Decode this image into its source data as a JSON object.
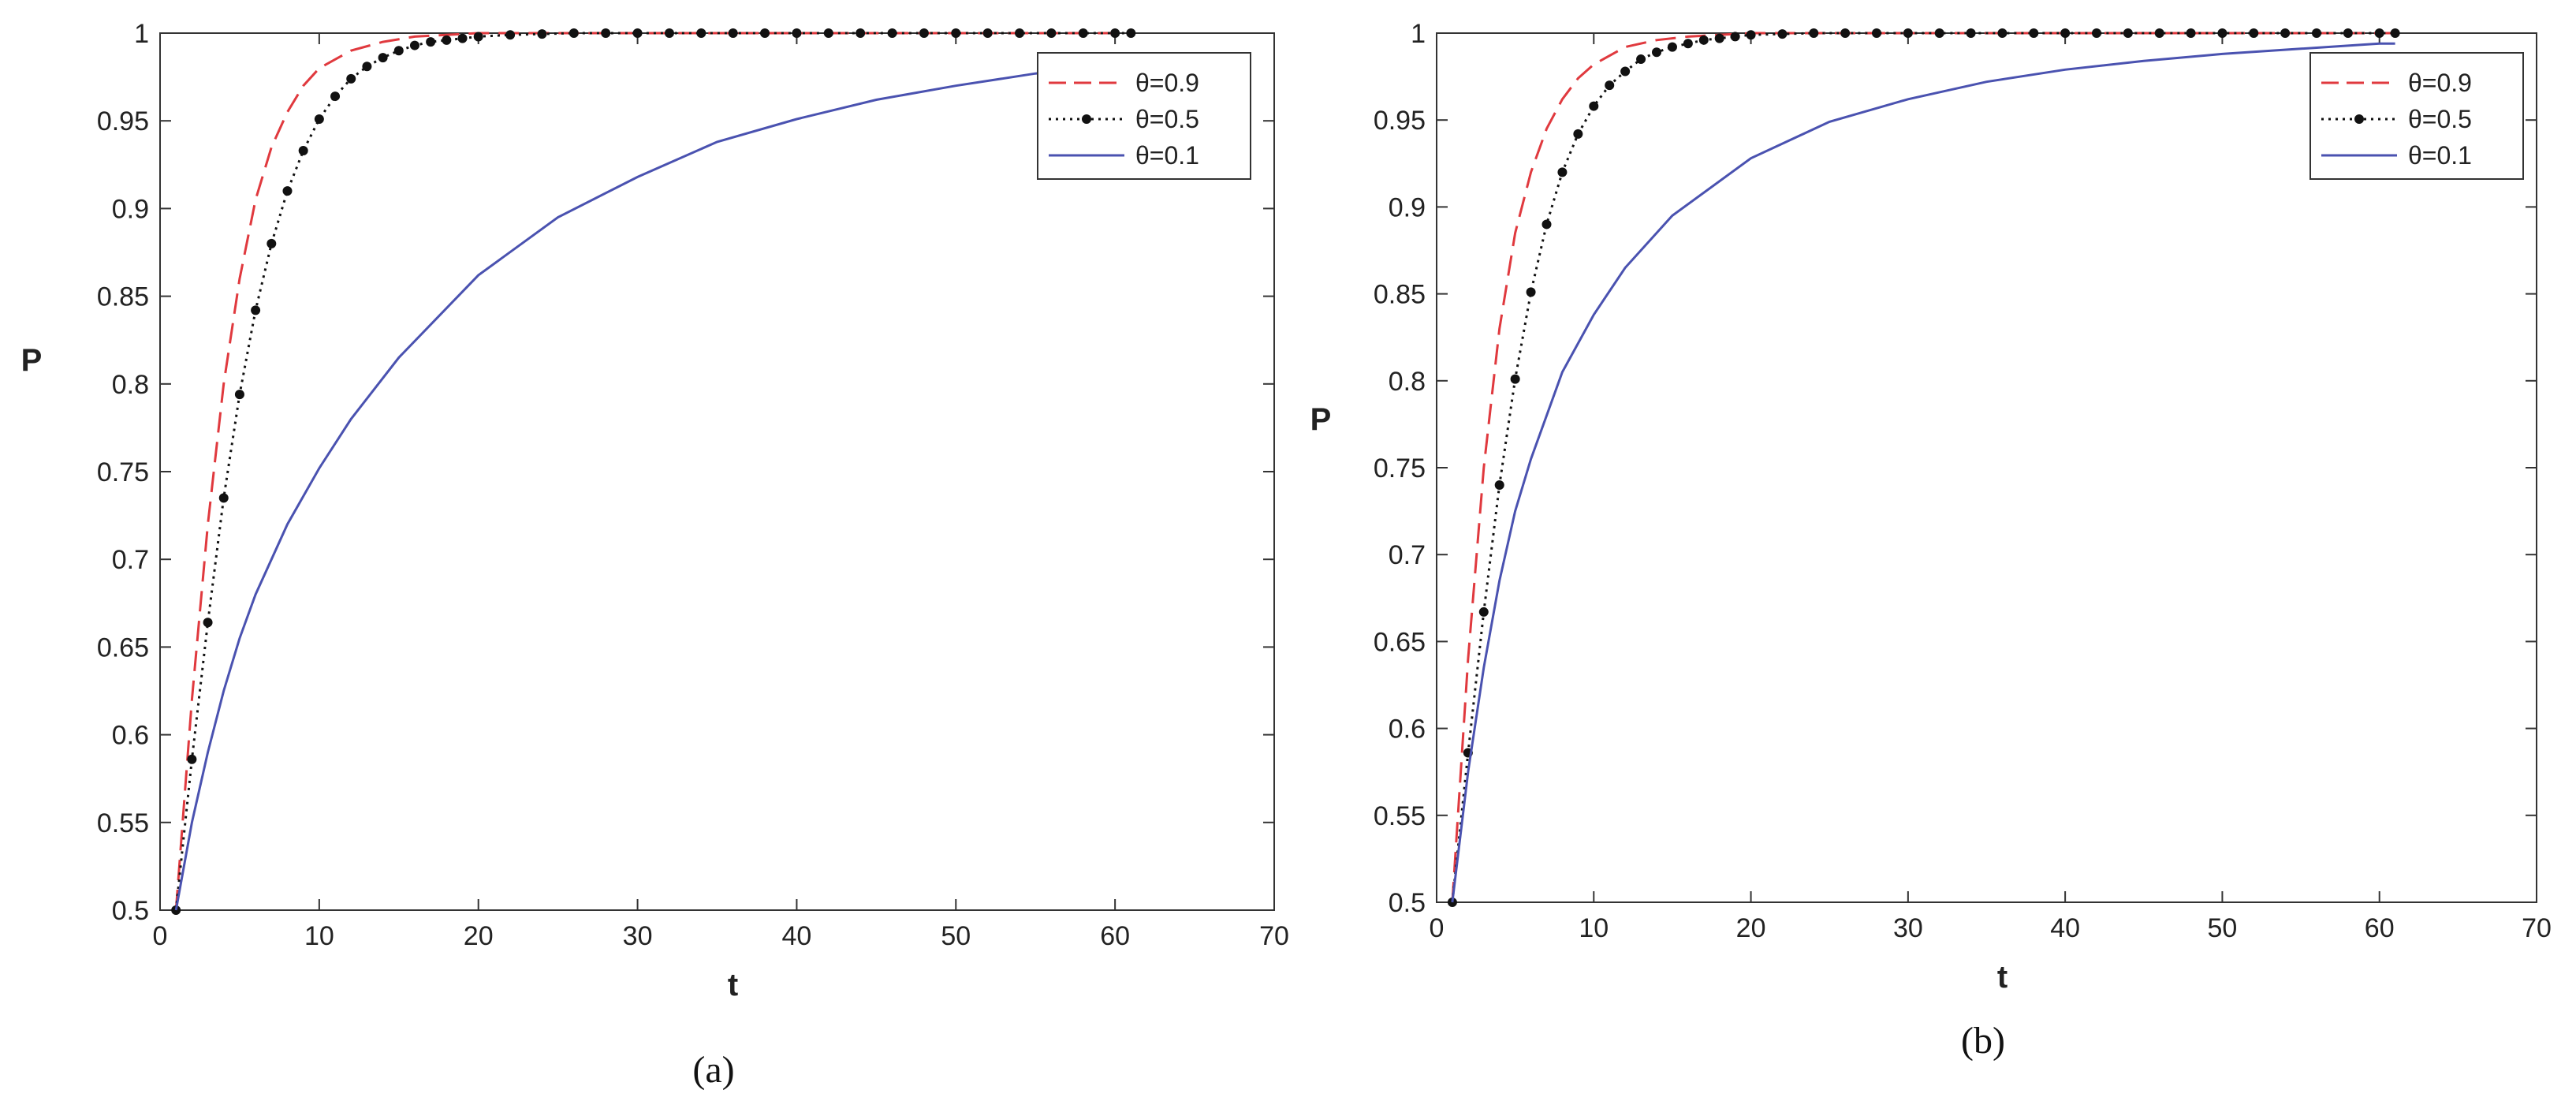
{
  "colors": {
    "theta_0_9": "#e0393e",
    "theta_0_5": "#111111",
    "theta_0_1": "#4a52b0"
  },
  "chart_data": [
    {
      "type": "line",
      "caption": "(a)",
      "xlabel": "t",
      "ylabel": "P",
      "xlim": [
        0,
        70
      ],
      "ylim": [
        0.5,
        1
      ],
      "xticks": [
        "0",
        "10",
        "20",
        "30",
        "40",
        "50",
        "60",
        "70"
      ],
      "yticks": [
        "0.5",
        "0.55",
        "0.6",
        "0.65",
        "0.7",
        "0.75",
        "0.8",
        "0.85",
        "0.9",
        "0.95",
        "1"
      ],
      "grid": false,
      "legend_position": "top-right",
      "series": [
        {
          "name": "θ=0.9",
          "style": "dashed",
          "color": "#e0393e",
          "x": [
            1,
            2,
            3,
            4,
            5,
            6,
            7,
            8,
            9,
            10,
            12,
            14,
            16,
            18,
            20,
            25,
            30,
            40,
            50,
            61
          ],
          "y": [
            0.5,
            0.62,
            0.72,
            0.8,
            0.86,
            0.905,
            0.935,
            0.955,
            0.97,
            0.98,
            0.99,
            0.995,
            0.998,
            0.999,
            1.0,
            1.0,
            1.0,
            1.0,
            1.0,
            1.0
          ]
        },
        {
          "name": "θ=0.5",
          "style": "dotted-markers",
          "color": "#111111",
          "x": [
            1,
            2,
            3,
            4,
            5,
            6,
            7,
            8,
            9,
            10,
            11,
            12,
            13,
            14,
            15,
            16,
            17,
            18,
            19,
            20,
            22,
            24,
            26,
            28,
            30,
            32,
            34,
            36,
            38,
            40,
            42,
            44,
            46,
            48,
            50,
            52,
            54,
            56,
            58,
            60,
            61
          ],
          "y": [
            0.5,
            0.586,
            0.664,
            0.735,
            0.794,
            0.842,
            0.88,
            0.91,
            0.933,
            0.951,
            0.964,
            0.974,
            0.981,
            0.986,
            0.99,
            0.993,
            0.995,
            0.996,
            0.997,
            0.998,
            0.999,
            0.9995,
            1.0,
            1.0,
            1.0,
            1.0,
            1.0,
            1.0,
            1.0,
            1.0,
            1.0,
            1.0,
            1.0,
            1.0,
            1.0,
            1.0,
            1.0,
            1.0,
            1.0,
            1.0,
            1.0
          ]
        },
        {
          "name": "θ=0.1",
          "style": "solid",
          "color": "#4a52b0",
          "x": [
            1,
            2,
            3,
            4,
            5,
            6,
            8,
            10,
            12,
            15,
            20,
            25,
            30,
            35,
            40,
            45,
            50,
            55,
            60,
            61
          ],
          "y": [
            0.5,
            0.55,
            0.59,
            0.625,
            0.655,
            0.68,
            0.72,
            0.752,
            0.78,
            0.815,
            0.862,
            0.895,
            0.918,
            0.938,
            0.951,
            0.962,
            0.97,
            0.977,
            0.982,
            0.983
          ]
        }
      ]
    },
    {
      "type": "line",
      "caption": "(b)",
      "xlabel": "t",
      "ylabel": "P",
      "xlim": [
        0,
        70
      ],
      "ylim": [
        0.5,
        1
      ],
      "xticks": [
        "0",
        "10",
        "20",
        "30",
        "40",
        "50",
        "60",
        "70"
      ],
      "yticks": [
        "0.5",
        "0.55",
        "0.6",
        "0.65",
        "0.7",
        "0.75",
        "0.8",
        "0.85",
        "0.9",
        "0.95",
        "1"
      ],
      "grid": false,
      "legend_position": "top-right",
      "series": [
        {
          "name": "θ=0.9",
          "style": "dashed",
          "color": "#e0393e",
          "x": [
            1,
            2,
            3,
            4,
            5,
            6,
            7,
            8,
            9,
            10,
            12,
            14,
            16,
            18,
            20,
            25,
            30,
            40,
            50,
            61
          ],
          "y": [
            0.5,
            0.64,
            0.75,
            0.83,
            0.885,
            0.92,
            0.945,
            0.962,
            0.974,
            0.982,
            0.992,
            0.996,
            0.998,
            0.999,
            1.0,
            1.0,
            1.0,
            1.0,
            1.0,
            1.0
          ]
        },
        {
          "name": "θ=0.5",
          "style": "dotted-markers",
          "color": "#111111",
          "x": [
            1,
            2,
            3,
            4,
            5,
            6,
            7,
            8,
            9,
            10,
            11,
            12,
            13,
            14,
            15,
            16,
            17,
            18,
            19,
            20,
            22,
            24,
            26,
            28,
            30,
            32,
            34,
            36,
            38,
            40,
            42,
            44,
            46,
            48,
            50,
            52,
            54,
            56,
            58,
            60,
            61
          ],
          "y": [
            0.5,
            0.586,
            0.667,
            0.74,
            0.801,
            0.851,
            0.89,
            0.92,
            0.942,
            0.958,
            0.97,
            0.978,
            0.985,
            0.989,
            0.992,
            0.994,
            0.996,
            0.997,
            0.998,
            0.999,
            0.9995,
            1.0,
            1.0,
            1.0,
            1.0,
            1.0,
            1.0,
            1.0,
            1.0,
            1.0,
            1.0,
            1.0,
            1.0,
            1.0,
            1.0,
            1.0,
            1.0,
            1.0,
            1.0,
            1.0,
            1.0
          ]
        },
        {
          "name": "θ=0.1",
          "style": "solid",
          "color": "#4a52b0",
          "x": [
            1,
            2,
            3,
            4,
            5,
            6,
            8,
            10,
            12,
            15,
            20,
            25,
            30,
            35,
            40,
            45,
            50,
            55,
            60,
            61
          ],
          "y": [
            0.5,
            0.575,
            0.635,
            0.685,
            0.725,
            0.755,
            0.805,
            0.838,
            0.865,
            0.895,
            0.928,
            0.949,
            0.962,
            0.972,
            0.979,
            0.984,
            0.988,
            0.991,
            0.994,
            0.994
          ]
        }
      ]
    }
  ]
}
